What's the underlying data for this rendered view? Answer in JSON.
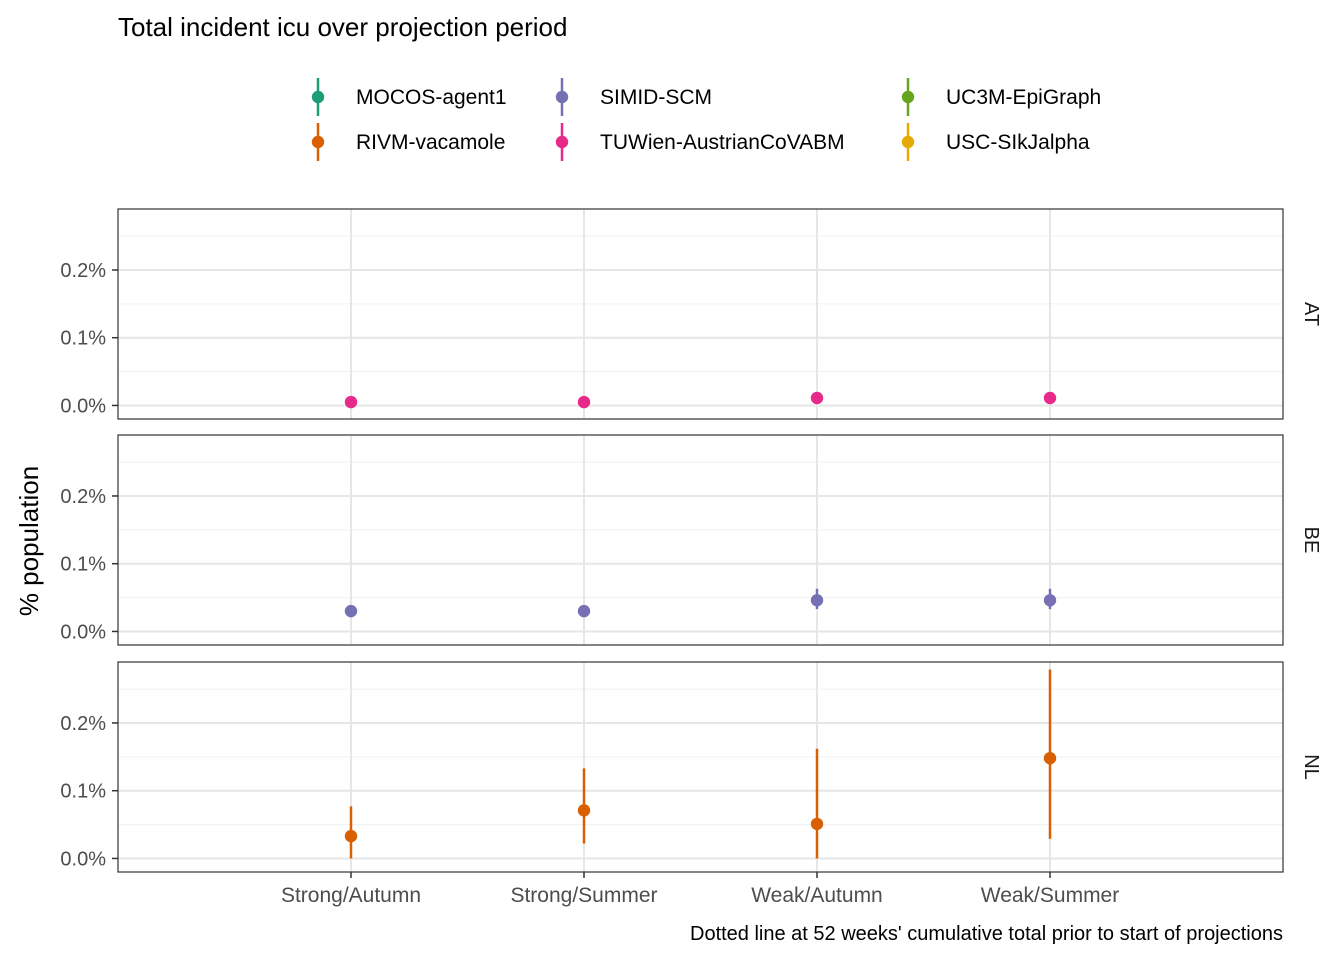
{
  "chart_data": {
    "type": "scatter",
    "title": "Total incident icu over projection period",
    "ylabel": "% population",
    "xlabel": "",
    "caption": "Dotted line at 52 weeks' cumulative total prior to start of projections",
    "categories": [
      "Strong/Autumn",
      "Strong/Summer",
      "Weak/Autumn",
      "Weak/Summer"
    ],
    "ylim": [
      -0.0002,
      0.0029
    ],
    "y_ticks": [
      0.0,
      0.001,
      0.002
    ],
    "y_tick_labels": [
      "0.0%",
      "0.1%",
      "0.2%"
    ],
    "grid": true,
    "legend_position": "top",
    "legend": [
      {
        "name": "MOCOS-agent1",
        "color": "#1b9e77"
      },
      {
        "name": "RIVM-vacamole",
        "color": "#d95f02"
      },
      {
        "name": "SIMID-SCM",
        "color": "#7570b3"
      },
      {
        "name": "TUWien-AustrianCoVABM",
        "color": "#e7298a"
      },
      {
        "name": "UC3M-EpiGraph",
        "color": "#66a61e"
      },
      {
        "name": "USC-SIkJalpha",
        "color": "#e6ab02"
      }
    ],
    "panels": [
      {
        "label": "AT",
        "points": [
          {
            "series": "TUWien-AustrianCoVABM",
            "color": "#e7298a",
            "category": "Strong/Autumn",
            "y": 5e-05,
            "lo": 4e-05,
            "hi": 6e-05
          },
          {
            "series": "TUWien-AustrianCoVABM",
            "color": "#e7298a",
            "category": "Strong/Summer",
            "y": 5e-05,
            "lo": 4e-05,
            "hi": 6e-05
          },
          {
            "series": "TUWien-AustrianCoVABM",
            "color": "#e7298a",
            "category": "Weak/Autumn",
            "y": 0.00011,
            "lo": 0.0001,
            "hi": 0.00012
          },
          {
            "series": "TUWien-AustrianCoVABM",
            "color": "#e7298a",
            "category": "Weak/Summer",
            "y": 0.00011,
            "lo": 0.0001,
            "hi": 0.00012
          }
        ]
      },
      {
        "label": "BE",
        "points": [
          {
            "series": "SIMID-SCM",
            "color": "#7570b3",
            "category": "Strong/Autumn",
            "y": 0.0003,
            "lo": 0.00028,
            "hi": 0.00032
          },
          {
            "series": "SIMID-SCM",
            "color": "#7570b3",
            "category": "Strong/Summer",
            "y": 0.0003,
            "lo": 0.00028,
            "hi": 0.00032
          },
          {
            "series": "SIMID-SCM",
            "color": "#7570b3",
            "category": "Weak/Autumn",
            "y": 0.00046,
            "lo": 0.00033,
            "hi": 0.00063
          },
          {
            "series": "SIMID-SCM",
            "color": "#7570b3",
            "category": "Weak/Summer",
            "y": 0.00046,
            "lo": 0.00033,
            "hi": 0.00063
          }
        ]
      },
      {
        "label": "NL",
        "points": [
          {
            "series": "RIVM-vacamole",
            "color": "#d95f02",
            "category": "Strong/Autumn",
            "y": 0.00033,
            "lo": 0.0,
            "hi": 0.00077
          },
          {
            "series": "RIVM-vacamole",
            "color": "#d95f02",
            "category": "Strong/Summer",
            "y": 0.00071,
            "lo": 0.00022,
            "hi": 0.00133
          },
          {
            "series": "RIVM-vacamole",
            "color": "#d95f02",
            "category": "Weak/Autumn",
            "y": 0.00051,
            "lo": 0.0,
            "hi": 0.00162
          },
          {
            "series": "RIVM-vacamole",
            "color": "#d95f02",
            "category": "Weak/Summer",
            "y": 0.00148,
            "lo": 0.00029,
            "hi": 0.00279
          }
        ]
      }
    ]
  }
}
